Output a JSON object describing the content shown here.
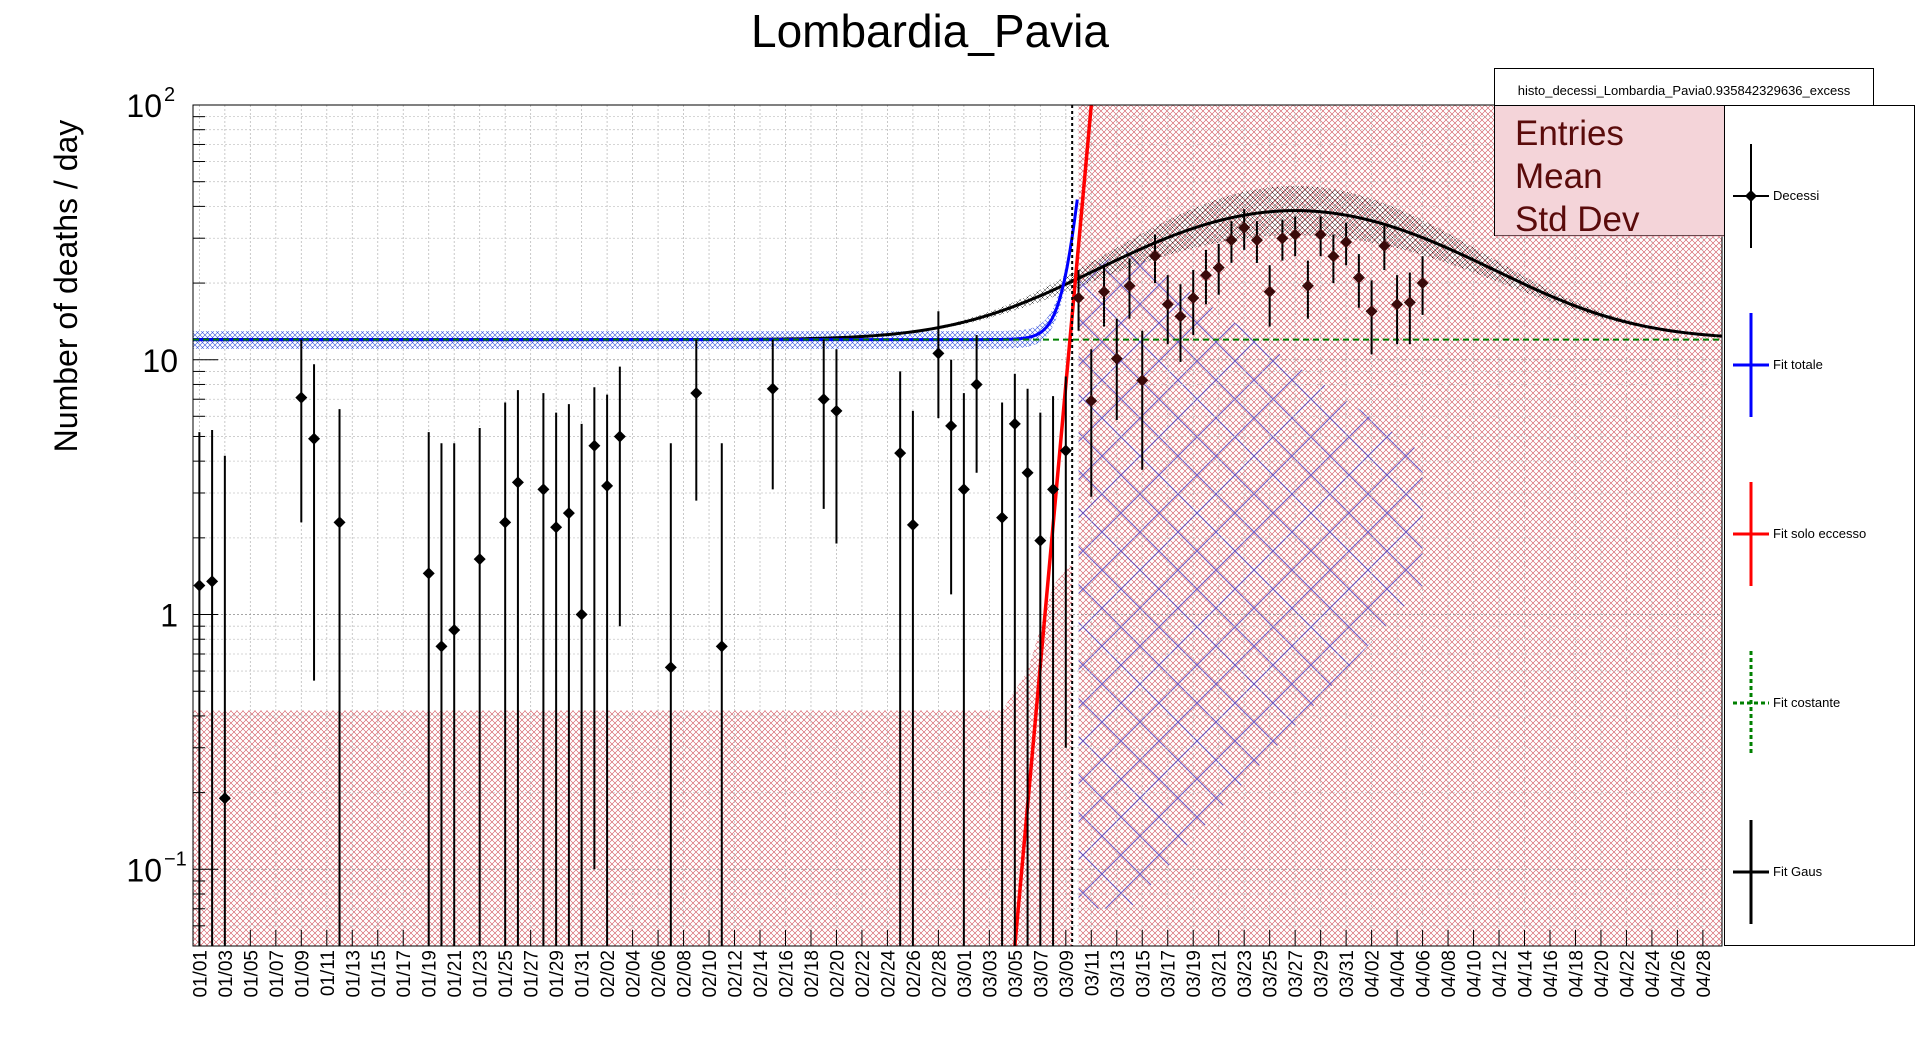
{
  "chart_data": {
    "type": "scatter",
    "title": "Lombardia_Pavia",
    "ylabel": "Number of deaths / day",
    "xlabel": "",
    "y_scale": "log",
    "ylim": [
      0.05,
      100
    ],
    "y_tick_labels": [
      {
        "value": 100,
        "label": "10",
        "sup": "2"
      },
      {
        "value": 10,
        "label": "10",
        "sup": ""
      },
      {
        "value": 1,
        "label": "1",
        "sup": ""
      },
      {
        "value": 0.1,
        "label": "10",
        "sup": "−1"
      }
    ],
    "x_tick_labels": [
      "01/01",
      "01/03",
      "01/05",
      "01/07",
      "01/09",
      "01/11",
      "01/13",
      "01/15",
      "01/17",
      "01/19",
      "01/21",
      "01/23",
      "01/25",
      "01/27",
      "01/29",
      "01/31",
      "02/02",
      "02/04",
      "02/06",
      "02/08",
      "02/10",
      "02/12",
      "02/14",
      "02/16",
      "02/18",
      "02/20",
      "02/22",
      "02/24",
      "02/26",
      "02/28",
      "03/01",
      "03/03",
      "03/05",
      "03/07",
      "03/09",
      "03/11",
      "03/13",
      "03/15",
      "03/17",
      "03/19",
      "03/21",
      "03/23",
      "03/25",
      "03/27",
      "03/29",
      "03/31",
      "04/02",
      "04/04",
      "04/06",
      "04/08",
      "04/10",
      "04/12",
      "04/14",
      "04/16",
      "04/18",
      "04/20",
      "04/22",
      "04/24",
      "04/26",
      "04/28"
    ],
    "grid": true,
    "legend_placement": "right",
    "series": [
      {
        "name": "Decessi",
        "color": "#000000",
        "points": [
          {
            "x": 1,
            "y": 1.3,
            "lo": 0.02,
            "hi": 5.2
          },
          {
            "x": 2,
            "y": 1.35,
            "lo": 0.02,
            "hi": 5.3
          },
          {
            "x": 3,
            "y": 0.19,
            "lo": 0.02,
            "hi": 4.2
          },
          {
            "x": 9,
            "y": 7.1,
            "lo": 2.3,
            "hi": 12
          },
          {
            "x": 10,
            "y": 4.9,
            "lo": 0.55,
            "hi": 9.6
          },
          {
            "x": 12,
            "y": 2.3,
            "lo": 0.02,
            "hi": 6.4
          },
          {
            "x": 19,
            "y": 1.45,
            "lo": 0.02,
            "hi": 5.2
          },
          {
            "x": 20,
            "y": 0.75,
            "lo": 0.02,
            "hi": 4.7
          },
          {
            "x": 21,
            "y": 0.87,
            "lo": 0.02,
            "hi": 4.7
          },
          {
            "x": 23,
            "y": 1.65,
            "lo": 0.02,
            "hi": 5.4
          },
          {
            "x": 25,
            "y": 2.3,
            "lo": 0.02,
            "hi": 6.8
          },
          {
            "x": 26,
            "y": 3.3,
            "lo": 0.02,
            "hi": 7.6
          },
          {
            "x": 28,
            "y": 3.1,
            "lo": 0.02,
            "hi": 7.4
          },
          {
            "x": 29,
            "y": 2.2,
            "lo": 0.02,
            "hi": 6.2
          },
          {
            "x": 30,
            "y": 2.5,
            "lo": 0.02,
            "hi": 6.7
          },
          {
            "x": 31,
            "y": 1.0,
            "lo": 0.02,
            "hi": 5.6
          },
          {
            "x": 32,
            "y": 4.6,
            "lo": 0.1,
            "hi": 7.8
          },
          {
            "x": 33,
            "y": 3.2,
            "lo": 0.02,
            "hi": 7.3
          },
          {
            "x": 34,
            "y": 5.0,
            "lo": 0.9,
            "hi": 9.4
          },
          {
            "x": 38,
            "y": 0.62,
            "lo": 0.02,
            "hi": 4.7
          },
          {
            "x": 40,
            "y": 7.4,
            "lo": 2.8,
            "hi": 12
          },
          {
            "x": 42,
            "y": 0.75,
            "lo": 0.02,
            "hi": 4.7
          },
          {
            "x": 46,
            "y": 7.7,
            "lo": 3.1,
            "hi": 12
          },
          {
            "x": 50,
            "y": 7.0,
            "lo": 2.6,
            "hi": 12
          },
          {
            "x": 51,
            "y": 6.3,
            "lo": 1.9,
            "hi": 11
          },
          {
            "x": 56,
            "y": 4.3,
            "lo": 0.02,
            "hi": 9.0
          },
          {
            "x": 57,
            "y": 2.25,
            "lo": 0.02,
            "hi": 6.3
          },
          {
            "x": 59,
            "y": 10.6,
            "lo": 5.9,
            "hi": 15.5
          },
          {
            "x": 60,
            "y": 5.5,
            "lo": 1.2,
            "hi": 10
          },
          {
            "x": 61,
            "y": 3.1,
            "lo": 0.02,
            "hi": 7.4
          },
          {
            "x": 62,
            "y": 8.0,
            "lo": 3.6,
            "hi": 12.5
          },
          {
            "x": 64,
            "y": 2.4,
            "lo": 0.02,
            "hi": 6.8
          },
          {
            "x": 65,
            "y": 5.6,
            "lo": 0.02,
            "hi": 8.8
          },
          {
            "x": 66,
            "y": 3.6,
            "lo": 0.02,
            "hi": 7.7
          },
          {
            "x": 67,
            "y": 1.95,
            "lo": 0.02,
            "hi": 6.2
          },
          {
            "x": 68,
            "y": 3.1,
            "lo": 0.02,
            "hi": 7.2
          },
          {
            "x": 69,
            "y": 4.4,
            "lo": 0.3,
            "hi": 8.6
          },
          {
            "x": 70,
            "y": 17.5,
            "lo": 13,
            "hi": 22.5
          },
          {
            "x": 71,
            "y": 6.9,
            "lo": 2.9,
            "hi": 11
          },
          {
            "x": 72,
            "y": 18.5,
            "lo": 13.5,
            "hi": 23.5
          },
          {
            "x": 73,
            "y": 10.1,
            "lo": 5.8,
            "hi": 14.5
          },
          {
            "x": 74,
            "y": 19.5,
            "lo": 14.5,
            "hi": 25
          },
          {
            "x": 75,
            "y": 8.3,
            "lo": 3.7,
            "hi": 13
          },
          {
            "x": 76,
            "y": 25.5,
            "lo": 20,
            "hi": 31
          },
          {
            "x": 77,
            "y": 16.5,
            "lo": 11.5,
            "hi": 21.5
          },
          {
            "x": 78,
            "y": 14.8,
            "lo": 9.8,
            "hi": 19.8
          },
          {
            "x": 79,
            "y": 17.5,
            "lo": 12.5,
            "hi": 22.5
          },
          {
            "x": 80,
            "y": 21.5,
            "lo": 16.5,
            "hi": 27
          },
          {
            "x": 81,
            "y": 23,
            "lo": 18,
            "hi": 28.5
          },
          {
            "x": 82,
            "y": 29.5,
            "lo": 24,
            "hi": 35
          },
          {
            "x": 83,
            "y": 33,
            "lo": 27,
            "hi": 39
          },
          {
            "x": 84,
            "y": 29.5,
            "lo": 24,
            "hi": 35
          },
          {
            "x": 85,
            "y": 18.5,
            "lo": 13.5,
            "hi": 23.5
          },
          {
            "x": 86,
            "y": 30,
            "lo": 24.5,
            "hi": 35.5
          },
          {
            "x": 87,
            "y": 31,
            "lo": 25.5,
            "hi": 36.5
          },
          {
            "x": 88,
            "y": 19.5,
            "lo": 14.5,
            "hi": 24.5
          },
          {
            "x": 89,
            "y": 31,
            "lo": 25.5,
            "hi": 36.5
          },
          {
            "x": 90,
            "y": 25.5,
            "lo": 20,
            "hi": 31
          },
          {
            "x": 91,
            "y": 29,
            "lo": 23.5,
            "hi": 34.5
          },
          {
            "x": 92,
            "y": 21,
            "lo": 16,
            "hi": 26
          },
          {
            "x": 93,
            "y": 15.5,
            "lo": 10.5,
            "hi": 20.5
          },
          {
            "x": 94,
            "y": 28,
            "lo": 22.5,
            "hi": 33.5
          },
          {
            "x": 95,
            "y": 16.5,
            "lo": 11.5,
            "hi": 21.5
          },
          {
            "x": 96,
            "y": 16.8,
            "lo": 11.5,
            "hi": 22
          },
          {
            "x": 97,
            "y": 20,
            "lo": 15,
            "hi": 25.5
          }
        ]
      },
      {
        "name": "Fit totale",
        "color": "#0000ff",
        "style": "solid"
      },
      {
        "name": "Fit solo eccesso",
        "color": "#ff0000",
        "style": "solid"
      },
      {
        "name": "Fit costante",
        "color": "#008000",
        "style": "dashed"
      },
      {
        "name": "Fit Gaus",
        "color": "#000000",
        "style": "solid"
      }
    ],
    "fit_params": {
      "constant": 12,
      "gaus_amplitude": 26.5,
      "gaus_mean": 87,
      "gaus_sigma": 11.5,
      "excess_x": [
        65,
        71
      ],
      "excess_y": [
        0.05,
        100
      ]
    },
    "vertical_marker_x": 69.5
  },
  "stats": {
    "title": "histo_decessi_Lombardia_Pavia0.935842329636_excess",
    "labels": [
      "Entries",
      "Mean",
      "Std Dev"
    ]
  }
}
